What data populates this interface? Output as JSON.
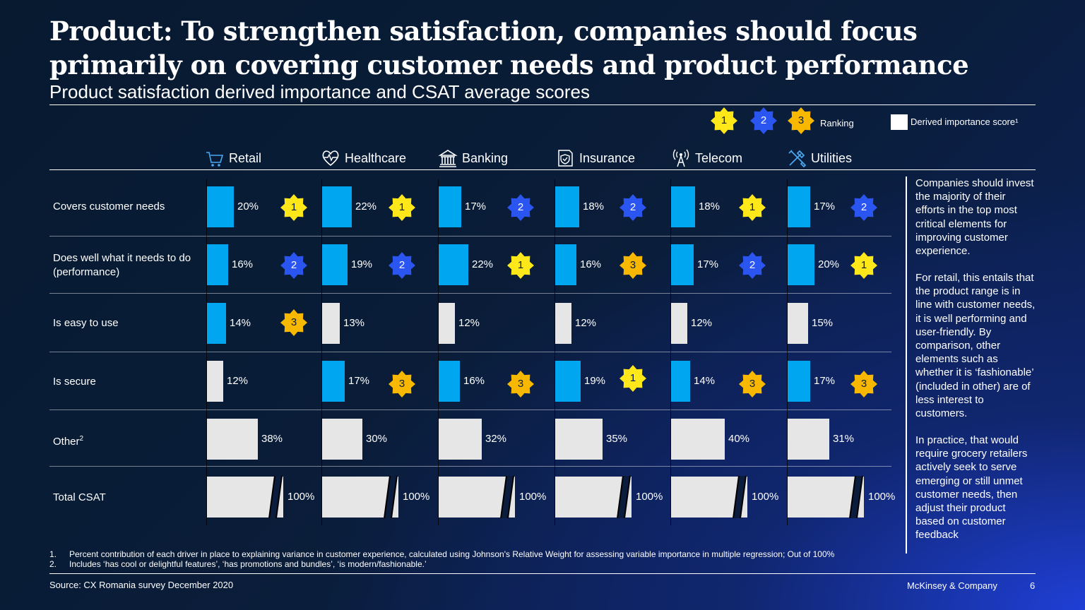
{
  "title": "Product: To strengthen satisfaction, companies should focus primarily on covering customer needs and product performance",
  "subtitle": "Product satisfaction derived importance and CSAT average scores",
  "legend": {
    "ranks": [
      "1",
      "2",
      "3"
    ],
    "ranking_label": "Ranking",
    "derived_label": "Derived importance score¹"
  },
  "colors": {
    "highlight_bar": "#00a6f0",
    "other_bar": "#e6e6e6",
    "rank1": "#ffe81a",
    "rank2": "#2b55f0",
    "rank3": "#f8b800"
  },
  "chart_data": {
    "type": "bar",
    "title": "Product satisfaction derived importance and CSAT average scores",
    "unit": "%",
    "sectors": [
      {
        "name": "Retail",
        "icon": "shopping-cart-icon"
      },
      {
        "name": "Healthcare",
        "icon": "heart-pulse-icon"
      },
      {
        "name": "Banking",
        "icon": "bank-building-icon"
      },
      {
        "name": "Insurance",
        "icon": "shield-document-icon"
      },
      {
        "name": "Telecom",
        "icon": "antenna-icon"
      },
      {
        "name": "Utilities",
        "icon": "tools-icon"
      }
    ],
    "rows": [
      {
        "label": "Covers customer needs",
        "values": [
          20,
          22,
          17,
          18,
          18,
          17
        ],
        "value_labels": [
          "20%",
          "22%",
          "17%",
          "18%",
          "18%",
          "17%"
        ],
        "ranks": [
          1,
          1,
          2,
          2,
          1,
          2
        ]
      },
      {
        "label": "Does well what it needs to do (performance)",
        "values": [
          16,
          19,
          22,
          16,
          17,
          20
        ],
        "value_labels": [
          "16%",
          "19%",
          "22%",
          "16%",
          "17%",
          "20%"
        ],
        "ranks": [
          2,
          2,
          1,
          3,
          2,
          1
        ]
      },
      {
        "label": "Is easy to use",
        "values": [
          14,
          13,
          12,
          12,
          12,
          15
        ],
        "value_labels": [
          "14%",
          "13%",
          "12%",
          "12%",
          "12%",
          "15%"
        ],
        "ranks": [
          3,
          null,
          null,
          null,
          null,
          null
        ]
      },
      {
        "label": "Is secure",
        "values": [
          12,
          17,
          16,
          19,
          14,
          17
        ],
        "value_labels": [
          "12%",
          "17%",
          "16%",
          "19%",
          "14%",
          "17%"
        ],
        "ranks": [
          null,
          3,
          3,
          1,
          3,
          3
        ]
      },
      {
        "label": "Other",
        "label_sup": "2",
        "values": [
          38,
          30,
          32,
          35,
          40,
          31
        ],
        "value_labels": [
          "38%",
          "30%",
          "32%",
          "35%",
          "40%",
          "31%"
        ],
        "ranks": [
          null,
          null,
          null,
          null,
          null,
          null
        ]
      },
      {
        "label": "Total CSAT",
        "values": [
          100,
          100,
          100,
          100,
          100,
          100
        ],
        "value_labels": [
          "100%",
          "100%",
          "100%",
          "100%",
          "100%",
          "100%"
        ],
        "ranks": [
          null,
          null,
          null,
          null,
          null,
          null
        ],
        "broken_axis": true
      }
    ]
  },
  "sidebar_note": [
    "Companies should invest the majority of their efforts in the top most critical elements for improving customer experience.",
    "For retail, this entails that the product range is in line with customer needs, it is well performing and user-friendly. By comparison, other elements such as whether it is ‘fashionable’ (included in other) are of less interest to customers.",
    "In practice, that would require grocery retailers actively seek to serve emerging or still unmet customer needs, then adjust their product based on customer feedback"
  ],
  "footnotes": [
    {
      "num": "1.",
      "text": "Percent contribution of each driver in place to explaining variance in customer experience, calculated using Johnson's Relative Weight for assessing variable importance in multiple regression; Out of 100%"
    },
    {
      "num": "2.",
      "text": "Includes ‘has cool or delightful features’, ‘has promotions and bundles’, ‘is modern/fashionable.’"
    }
  ],
  "source": "Source: CX Romania survey December 2020",
  "brand": "McKinsey & Company",
  "page_number": "6"
}
